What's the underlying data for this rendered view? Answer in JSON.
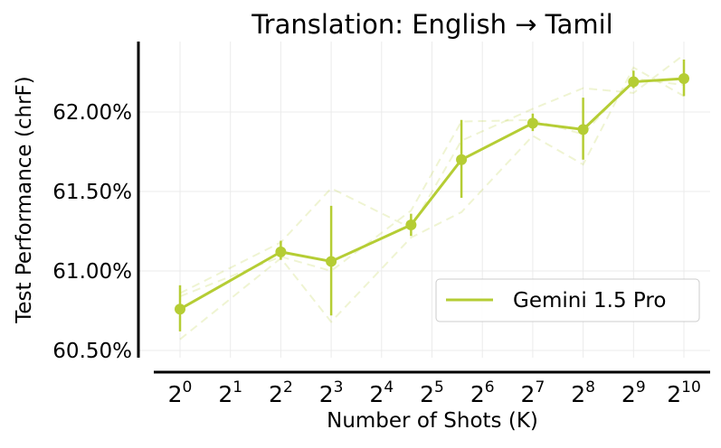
{
  "chart_data": {
    "type": "line",
    "title": "Translation: English → Tamil",
    "xlabel": "Number of Shots (K)",
    "ylabel": "Test Performance (chrF)",
    "x_scale": "log2",
    "x": [
      1,
      4,
      8,
      16,
      32,
      48,
      128,
      256,
      512,
      1024
    ],
    "x_ticks": [
      1,
      2,
      4,
      8,
      16,
      32,
      64,
      128,
      256,
      512,
      1024
    ],
    "x_tick_labels": [
      {
        "base": "2",
        "exp": "0"
      },
      {
        "base": "2",
        "exp": "1"
      },
      {
        "base": "2",
        "exp": "2"
      },
      {
        "base": "2",
        "exp": "3"
      },
      {
        "base": "2",
        "exp": "4"
      },
      {
        "base": "2",
        "exp": "5"
      },
      {
        "base": "2",
        "exp": "6"
      },
      {
        "base": "2",
        "exp": "7"
      },
      {
        "base": "2",
        "exp": "8"
      },
      {
        "base": "2",
        "exp": "9"
      },
      {
        "base": "2",
        "exp": "10"
      }
    ],
    "y_ticks": [
      60.5,
      61.0,
      61.5,
      62.0
    ],
    "y_tick_labels": [
      "60.50%",
      "61.00%",
      "61.50%",
      "62.00%"
    ],
    "ylim": [
      60.5,
      62.45
    ],
    "grid": true,
    "legend_position": "lower-right",
    "series": [
      {
        "name": "Gemini 1.5 Pro",
        "color": "#b5cd34",
        "values": [
          60.76,
          61.12,
          61.06,
          61.29,
          61.7,
          61.93,
          61.89,
          62.19,
          62.21
        ],
        "x": [
          1,
          4,
          8,
          24,
          48,
          128,
          256,
          512,
          1024
        ],
        "error_low": [
          60.62,
          61.07,
          60.72,
          61.22,
          61.46,
          61.88,
          61.7,
          62.15,
          62.1
        ],
        "error_high": [
          60.91,
          61.19,
          61.41,
          61.36,
          61.95,
          61.99,
          62.09,
          62.26,
          62.33
        ]
      }
    ],
    "runs": [
      {
        "x": [
          1,
          4,
          8,
          24,
          48,
          128,
          256,
          512,
          1024
        ],
        "values": [
          60.57,
          61.08,
          60.68,
          61.21,
          61.37,
          61.85,
          61.67,
          62.28,
          62.1
        ]
      },
      {
        "x": [
          1,
          4,
          8,
          24,
          48,
          128,
          256,
          512,
          1024
        ],
        "values": [
          60.86,
          61.18,
          61.52,
          61.27,
          61.82,
          62.02,
          62.15,
          62.12,
          62.36
        ]
      },
      {
        "x": [
          1,
          4,
          8,
          24,
          48,
          128,
          256,
          512,
          1024
        ],
        "values": [
          60.84,
          61.09,
          61.0,
          61.38,
          61.94,
          61.95,
          61.86,
          62.21,
          62.17
        ]
      }
    ]
  }
}
